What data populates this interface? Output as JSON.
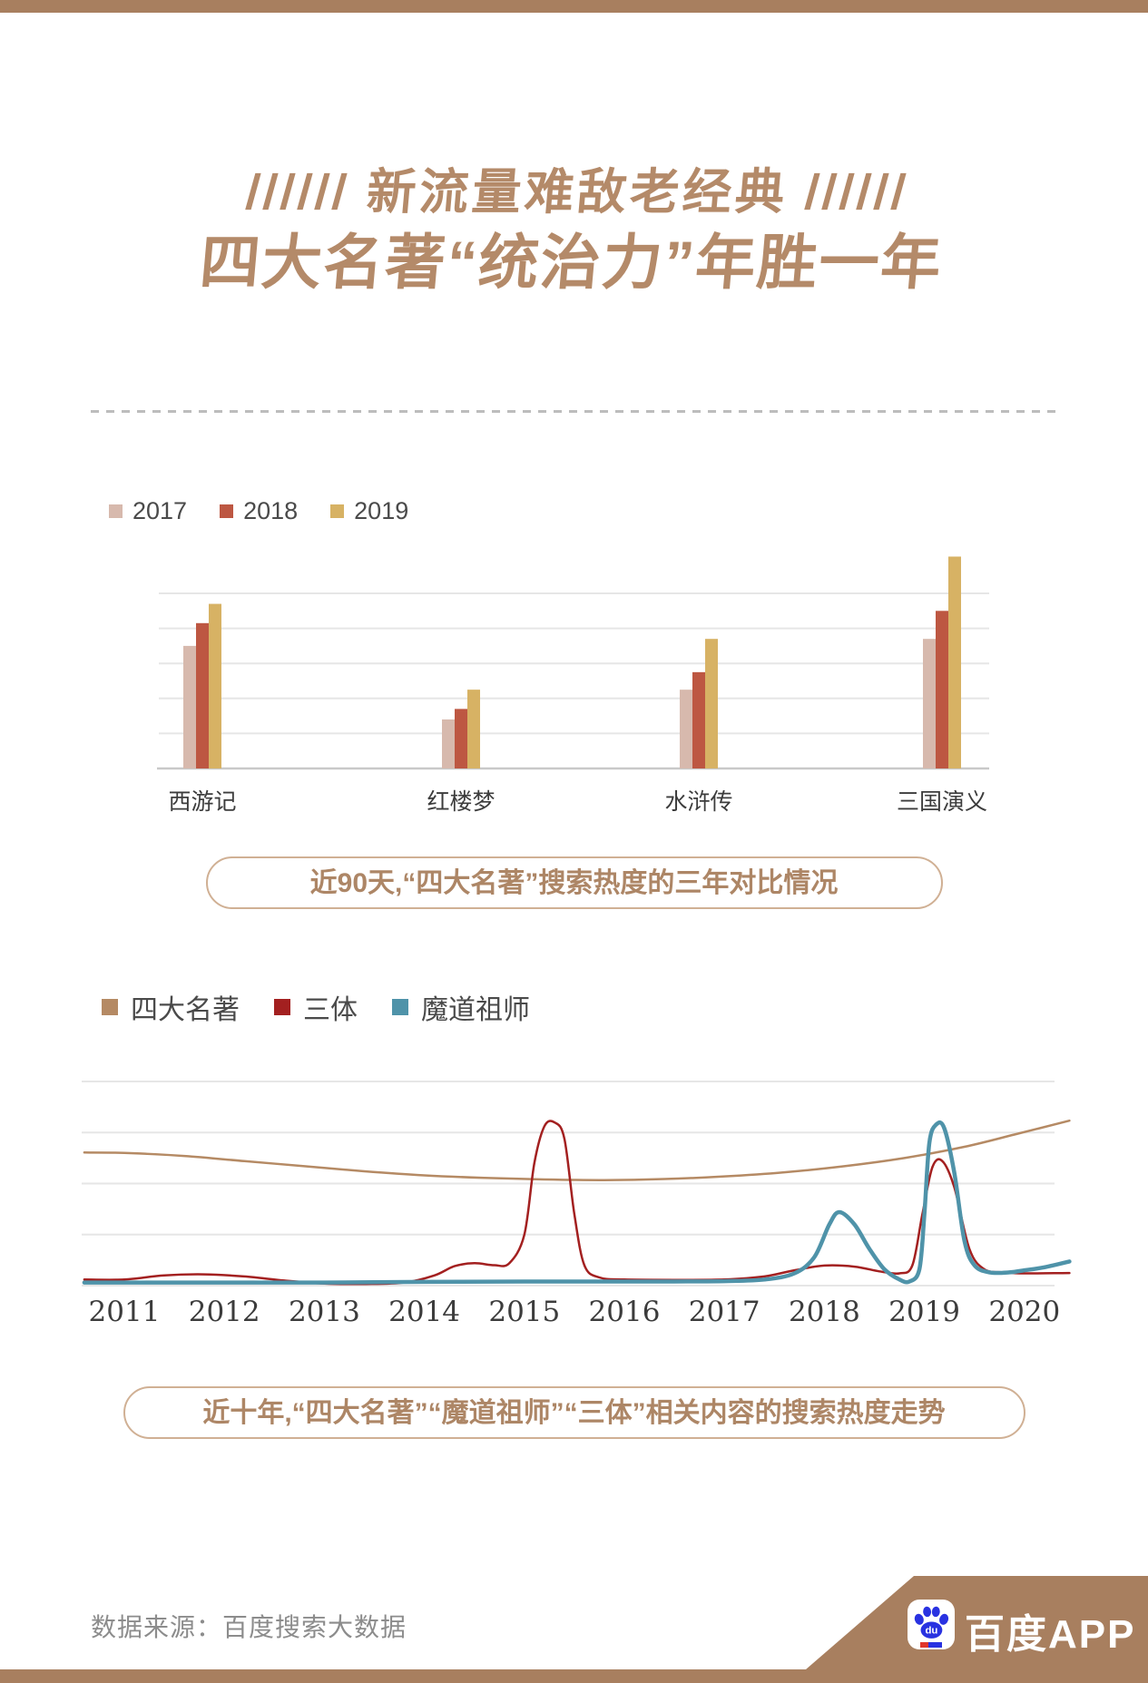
{
  "page": {
    "accent_brown": "#a87f5f",
    "background": "#ffffff"
  },
  "header": {
    "title_line1": "////// 新流量难敌老经典 //////",
    "title_line2": "四大名著“统治力”年胜一年",
    "title_color": "#b48a69"
  },
  "chart_data": [
    {
      "type": "bar",
      "categories": [
        "西游记",
        "红楼梦",
        "水浒传",
        "三国演义"
      ],
      "series": [
        {
          "name": "2017",
          "color": "#d7b9ad",
          "values": [
            70,
            28,
            45,
            74
          ]
        },
        {
          "name": "2018",
          "color": "#bd5742",
          "values": [
            83,
            34,
            55,
            90
          ]
        },
        {
          "name": "2019",
          "color": "#d7b264",
          "values": [
            94,
            45,
            74,
            121
          ]
        }
      ],
      "ylim": [
        0,
        125
      ],
      "gridline_step": 20,
      "grid": true,
      "legend_position": "top-left",
      "caption": "近90天,“四大名著”搜索热度的三年对比情况"
    },
    {
      "type": "line",
      "x_ticks": [
        "2011",
        "2012",
        "2013",
        "2014",
        "2015",
        "2016",
        "2017",
        "2018",
        "2019",
        "2020"
      ],
      "xlim": [
        2010.6,
        2020.45
      ],
      "ylim": [
        0,
        100
      ],
      "grid": true,
      "legend_position": "top-left",
      "caption": "近十年,“四大名著”“魔道祖师”“三体”相关内容的搜索热度走势",
      "series": [
        {
          "name": "四大名著",
          "color": "#b58a64",
          "width": 2.5,
          "points": [
            [
              2010.6,
              65.2
            ],
            [
              2011,
              65
            ],
            [
              2011.6,
              63.5
            ],
            [
              2012.2,
              61
            ],
            [
              2012.8,
              58.5
            ],
            [
              2013.4,
              56
            ],
            [
              2014,
              54
            ],
            [
              2014.6,
              52.8
            ],
            [
              2015.2,
              52
            ],
            [
              2015.8,
              51.7
            ],
            [
              2016.4,
              52.2
            ],
            [
              2017,
              53.5
            ],
            [
              2017.6,
              55.5
            ],
            [
              2018.2,
              58.5
            ],
            [
              2018.8,
              62.5
            ],
            [
              2019.4,
              68
            ],
            [
              2019.9,
              74
            ],
            [
              2020.45,
              80.8
            ]
          ]
        },
        {
          "name": "三体",
          "color": "#a32020",
          "width": 2.5,
          "points": [
            [
              2010.6,
              3
            ],
            [
              2011,
              3
            ],
            [
              2011.4,
              5
            ],
            [
              2011.8,
              5.5
            ],
            [
              2012.2,
              4.5
            ],
            [
              2012.6,
              2.5
            ],
            [
              2013,
              1
            ],
            [
              2013.4,
              0.8
            ],
            [
              2013.8,
              1.5
            ],
            [
              2014.1,
              5
            ],
            [
              2014.3,
              9.5
            ],
            [
              2014.5,
              11
            ],
            [
              2014.7,
              10
            ],
            [
              2014.85,
              11
            ],
            [
              2015.0,
              25
            ],
            [
              2015.1,
              60
            ],
            [
              2015.2,
              78
            ],
            [
              2015.3,
              80
            ],
            [
              2015.4,
              72
            ],
            [
              2015.5,
              35
            ],
            [
              2015.6,
              10
            ],
            [
              2015.75,
              4
            ],
            [
              2016,
              3
            ],
            [
              2016.5,
              2.8
            ],
            [
              2017,
              3
            ],
            [
              2017.4,
              4.5
            ],
            [
              2017.7,
              7.5
            ],
            [
              2018,
              9.8
            ],
            [
              2018.3,
              9.3
            ],
            [
              2018.55,
              7
            ],
            [
              2018.75,
              6
            ],
            [
              2018.88,
              10
            ],
            [
              2018.98,
              35
            ],
            [
              2019.08,
              58
            ],
            [
              2019.18,
              61
            ],
            [
              2019.3,
              48
            ],
            [
              2019.45,
              18
            ],
            [
              2019.6,
              8
            ],
            [
              2019.8,
              6.5
            ],
            [
              2020,
              6
            ],
            [
              2020.45,
              6.2
            ]
          ]
        },
        {
          "name": "魔道祖师",
          "color": "#4f93a9",
          "width": 4.5,
          "points": [
            [
              2010.6,
              1.5
            ],
            [
              2011,
              1.5
            ],
            [
              2012,
              1.5
            ],
            [
              2013,
              1.5
            ],
            [
              2014,
              1.8
            ],
            [
              2015,
              2
            ],
            [
              2015.5,
              2
            ],
            [
              2016,
              2
            ],
            [
              2016.5,
              2
            ],
            [
              2017,
              2.2
            ],
            [
              2017.4,
              3
            ],
            [
              2017.7,
              6
            ],
            [
              2017.9,
              14
            ],
            [
              2018.05,
              30
            ],
            [
              2018.15,
              36
            ],
            [
              2018.3,
              30
            ],
            [
              2018.45,
              18
            ],
            [
              2018.6,
              8
            ],
            [
              2018.75,
              3
            ],
            [
              2018.85,
              2
            ],
            [
              2018.95,
              8
            ],
            [
              2019.0,
              35
            ],
            [
              2019.05,
              70
            ],
            [
              2019.12,
              79
            ],
            [
              2019.2,
              77
            ],
            [
              2019.3,
              55
            ],
            [
              2019.4,
              22
            ],
            [
              2019.5,
              10
            ],
            [
              2019.65,
              6.5
            ],
            [
              2019.85,
              6.5
            ],
            [
              2020,
              7.5
            ],
            [
              2020.2,
              9
            ],
            [
              2020.45,
              11.8
            ]
          ]
        }
      ]
    }
  ],
  "footer": {
    "source": "数据来源：百度搜索大数据",
    "logo_text": "百度APP",
    "logo_monogram": "du"
  }
}
